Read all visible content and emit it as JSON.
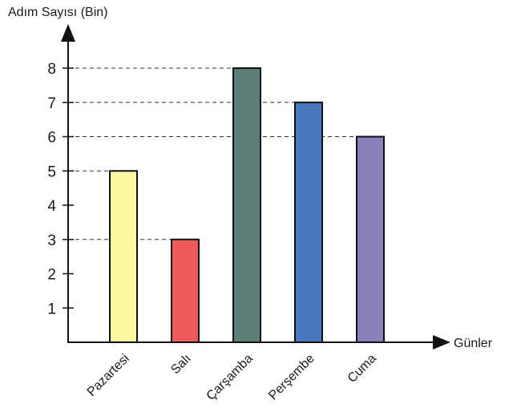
{
  "chart_data": {
    "type": "bar",
    "ylabel": "Adım Sayısı (Bin)",
    "xlabel": "Günler",
    "categories": [
      "Pazartesi",
      "Salı",
      "Çarşamba",
      "Perşembe",
      "Cuma"
    ],
    "values": [
      5,
      3,
      8,
      7,
      6
    ],
    "colors": [
      "#fdf6a0",
      "#ef5a5d",
      "#5c7d78",
      "#4a78bf",
      "#8a7fba"
    ],
    "yticks": [
      1,
      2,
      3,
      4,
      5,
      6,
      7,
      8
    ],
    "ylim": [
      0,
      8
    ],
    "grid": false,
    "guide_lines": "dashed lines from y-axis to bar tops"
  }
}
